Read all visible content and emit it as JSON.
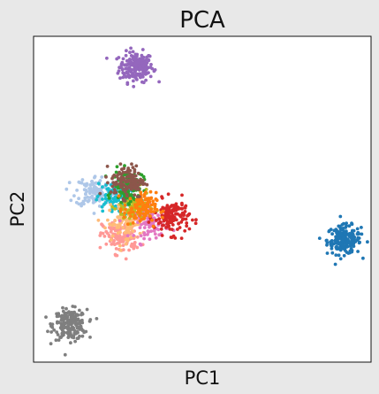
{
  "chart_data": {
    "type": "scatter",
    "title": "PCA",
    "xlabel": "PC1",
    "ylabel": "PC2",
    "xlim": [
      0,
      100
    ],
    "ylim": [
      0,
      100
    ],
    "xticks": "none",
    "yticks": "none",
    "grid": false,
    "legend": "none",
    "background": "#e8e8e8",
    "plot_background": "#ffffff",
    "clusters": [
      {
        "color": "#9467bd",
        "cx": 30.4,
        "cy": 90.6,
        "sx": 2.5,
        "sy": 2.3,
        "n": 200
      },
      {
        "color": "#1f77b4",
        "cx": 92.0,
        "cy": 37.5,
        "sx": 2.5,
        "sy": 2.2,
        "n": 200
      },
      {
        "color": "#7f7f7f",
        "cx": 10.8,
        "cy": 11.5,
        "sx": 2.5,
        "sy": 2.3,
        "n": 200
      },
      {
        "color": "#aec7e8",
        "cx": 18.5,
        "cy": 52.5,
        "sx": 3.0,
        "sy": 2.4,
        "n": 130
      },
      {
        "color": "#17becf",
        "cx": 23.5,
        "cy": 50.0,
        "sx": 2.5,
        "sy": 2.5,
        "n": 90
      },
      {
        "color": "#ff9896",
        "cx": 26.0,
        "cy": 38.5,
        "sx": 2.8,
        "sy": 2.6,
        "n": 130
      },
      {
        "color": "#ffbb78",
        "cx": 27.0,
        "cy": 42.5,
        "sx": 2.6,
        "sy": 2.6,
        "n": 90
      },
      {
        "color": "#e377c2",
        "cx": 35.0,
        "cy": 43.0,
        "sx": 2.5,
        "sy": 2.4,
        "n": 100
      },
      {
        "color": "#d62728",
        "cx": 41.0,
        "cy": 44.5,
        "sx": 2.6,
        "sy": 2.6,
        "n": 140
      },
      {
        "color": "#bcbd22",
        "cx": 29.5,
        "cy": 47.5,
        "sx": 2.4,
        "sy": 2.4,
        "n": 90
      },
      {
        "color": "#2ca02c",
        "cx": 28.0,
        "cy": 54.0,
        "sx": 2.2,
        "sy": 2.4,
        "n": 110
      },
      {
        "color": "#ff7f0e",
        "cx": 31.5,
        "cy": 47.0,
        "sx": 2.4,
        "sy": 2.5,
        "n": 110
      },
      {
        "color": "#8c564b",
        "cx": 28.0,
        "cy": 55.5,
        "sx": 2.5,
        "sy": 2.5,
        "n": 130
      }
    ]
  }
}
